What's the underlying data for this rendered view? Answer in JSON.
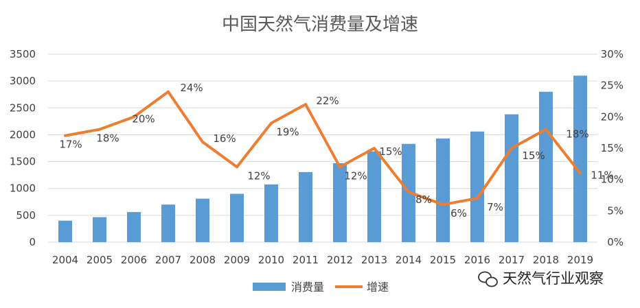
{
  "chart_data": {
    "type": "bar",
    "title": "中国天然气消费量及增速",
    "categories": [
      "2004",
      "2005",
      "2006",
      "2007",
      "2008",
      "2009",
      "2010",
      "2011",
      "2012",
      "2013",
      "2014",
      "2015",
      "2016",
      "2017",
      "2018",
      "2019"
    ],
    "series": [
      {
        "name": "消费量",
        "type": "bar",
        "axis": "left",
        "color": "#5B9BD5",
        "values": [
          400,
          465,
          560,
          700,
          810,
          900,
          1075,
          1305,
          1470,
          1690,
          1830,
          1930,
          2060,
          2380,
          2800,
          3100
        ]
      },
      {
        "name": "增速",
        "type": "line",
        "axis": "right",
        "color": "#ED7D31",
        "values": [
          17,
          18,
          20,
          24,
          16,
          12,
          19,
          22,
          12,
          15,
          8,
          6,
          7,
          15,
          18,
          11
        ],
        "labels": [
          "17%",
          "18%",
          "20%",
          "24%",
          "16%",
          "12%",
          "19%",
          "22%",
          "12%",
          "15%",
          "8%",
          "6%",
          "7%",
          "15%",
          "18%",
          "11%"
        ]
      }
    ],
    "y_left": {
      "min": 0,
      "max": 3500,
      "ticks": [
        "0",
        "500",
        "1000",
        "1500",
        "2000",
        "2500",
        "3000",
        "3500"
      ]
    },
    "y_right": {
      "min": 0,
      "max": 30,
      "ticks": [
        "0%",
        "5%",
        "10%",
        "15%",
        "20%",
        "25%",
        "30%"
      ]
    },
    "grid": true,
    "legend_position": "bottom"
  },
  "watermark": {
    "text": "天然气行业观察",
    "icon": "wechat-icon"
  }
}
